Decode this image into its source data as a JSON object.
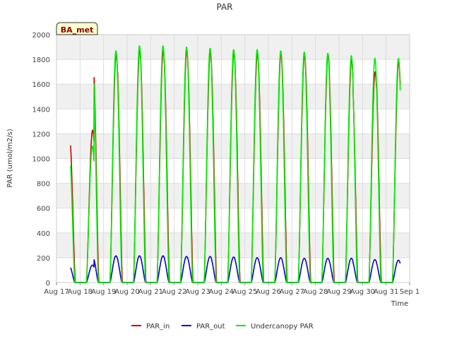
{
  "chart_data": {
    "type": "line",
    "title": "PAR",
    "badge": "BA_met",
    "xlabel": "Time",
    "ylabel": "PAR (umol/m2/s)",
    "x_unit": "days since Aug 17",
    "xlim": [
      0,
      15
    ],
    "ylim": [
      0,
      2000
    ],
    "x_ticks": [
      {
        "value": 0,
        "label": "Aug 17"
      },
      {
        "value": 1,
        "label": "Aug 18"
      },
      {
        "value": 2,
        "label": "Aug 19"
      },
      {
        "value": 3,
        "label": "Aug 20"
      },
      {
        "value": 4,
        "label": "Aug 21"
      },
      {
        "value": 5,
        "label": "Aug 22"
      },
      {
        "value": 6,
        "label": "Aug 23"
      },
      {
        "value": 7,
        "label": "Aug 24"
      },
      {
        "value": 8,
        "label": "Aug 25"
      },
      {
        "value": 9,
        "label": "Aug 26"
      },
      {
        "value": 10,
        "label": "Aug 27"
      },
      {
        "value": 11,
        "label": "Aug 28"
      },
      {
        "value": 12,
        "label": "Aug 29"
      },
      {
        "value": 13,
        "label": "Aug 30"
      },
      {
        "value": 14,
        "label": "Aug 31"
      },
      {
        "value": 15,
        "label": "Sep 1"
      }
    ],
    "y_ticks": [
      {
        "value": 0,
        "label": "0"
      },
      {
        "value": 200,
        "label": "200"
      },
      {
        "value": 400,
        "label": "400"
      },
      {
        "value": 600,
        "label": "600"
      },
      {
        "value": 800,
        "label": "800"
      },
      {
        "value": 1000,
        "label": "1000"
      },
      {
        "value": 1200,
        "label": "1200"
      },
      {
        "value": 1400,
        "label": "1400"
      },
      {
        "value": 1600,
        "label": "1600"
      },
      {
        "value": 1800,
        "label": "1800"
      },
      {
        "value": 2000,
        "label": "2000"
      }
    ],
    "day_start": 0.6,
    "day_span": 14,
    "series": [
      {
        "name": "PAR_in",
        "color": "#cc0000",
        "daily_peaks": [
          1230,
          1840,
          1880,
          1870,
          1870,
          1860,
          1860,
          1850,
          1850,
          1840,
          1840,
          1800,
          1700,
          1780
        ],
        "sunrise_offset": 0.27,
        "sunset_offset": 0.8
      },
      {
        "name": "PAR_out",
        "color": "#0000cc",
        "daily_peaks": [
          140,
          215,
          215,
          215,
          210,
          210,
          205,
          200,
          200,
          195,
          195,
          195,
          185,
          180
        ],
        "sunrise_offset": 0.27,
        "sunset_offset": 0.78
      },
      {
        "name": "Undercanopy PAR",
        "color": "#00ee00",
        "daily_peaks": [
          1100,
          1870,
          1910,
          1910,
          1900,
          1890,
          1880,
          1880,
          1870,
          1860,
          1850,
          1830,
          1810,
          1810
        ],
        "sunrise_offset": 0.27,
        "sunset_offset": 0.78
      }
    ],
    "legend_position": "bottom-center",
    "grid": true
  }
}
